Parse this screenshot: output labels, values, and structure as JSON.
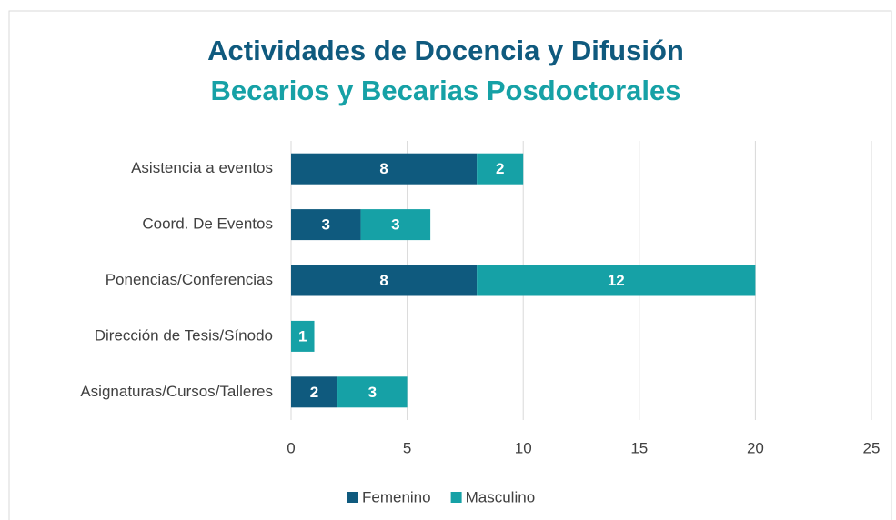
{
  "chart_data": {
    "type": "stacked_barh",
    "title": "Actividades de Docencia y Difusión",
    "subtitle": "Becarios y Becarias Posdoctorales",
    "categories": [
      "Asistencia a eventos",
      "Coord. De Eventos",
      "Ponencias/Conferencias",
      "Dirección de Tesis/Sínodo",
      "Asignaturas/Cursos/Talleres"
    ],
    "series": [
      {
        "name": "Femenino",
        "color": "#0f5a7e",
        "values": [
          8,
          3,
          8,
          null,
          2
        ]
      },
      {
        "name": "Masculino",
        "color": "#16a1a6",
        "values": [
          2,
          3,
          12,
          1,
          3
        ]
      }
    ],
    "xlim": [
      0,
      25
    ],
    "xticks": [
      0,
      5,
      10,
      15,
      20,
      25
    ],
    "grid": true,
    "legend": "bottom"
  }
}
